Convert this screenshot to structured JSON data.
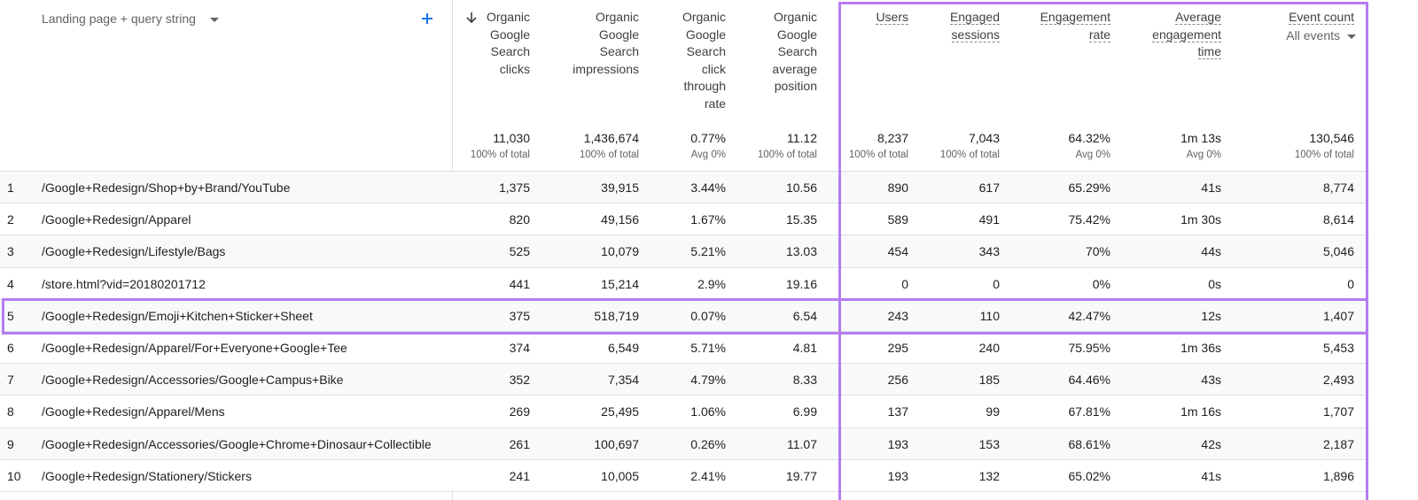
{
  "header": {
    "dimension": "Landing page + query string",
    "columns": [
      {
        "label": "Organic Google Search clicks",
        "total": "11,030",
        "note": "100% of total"
      },
      {
        "label": "Organic Google Search impressions",
        "total": "1,436,674",
        "note": "100% of total"
      },
      {
        "label": "Organic Google Search click through rate",
        "total": "0.77%",
        "note": "Avg 0%"
      },
      {
        "label": "Organic Google Search average position",
        "total": "11.12",
        "note": "100% of total"
      },
      {
        "label": "Users",
        "total": "8,237",
        "note": "100% of total"
      },
      {
        "label": "Engaged sessions",
        "total": "7,043",
        "note": "100% of total"
      },
      {
        "label": "Engagement rate",
        "total": "64.32%",
        "note": "Avg 0%"
      },
      {
        "label": "Average engagement time",
        "total": "1m 13s",
        "note": "Avg 0%"
      },
      {
        "label": "Event count",
        "sub_label": "All events",
        "total": "130,546",
        "note": "100% of total"
      }
    ]
  },
  "rows": [
    {
      "rank": "1",
      "page": "/Google+Redesign/Shop+by+Brand/YouTube",
      "cells": [
        "1,375",
        "39,915",
        "3.44%",
        "10.56",
        "890",
        "617",
        "65.29%",
        "41s",
        "8,774"
      ]
    },
    {
      "rank": "2",
      "page": "/Google+Redesign/Apparel",
      "cells": [
        "820",
        "49,156",
        "1.67%",
        "15.35",
        "589",
        "491",
        "75.42%",
        "1m 30s",
        "8,614"
      ]
    },
    {
      "rank": "3",
      "page": "/Google+Redesign/Lifestyle/Bags",
      "cells": [
        "525",
        "10,079",
        "5.21%",
        "13.03",
        "454",
        "343",
        "70%",
        "44s",
        "5,046"
      ]
    },
    {
      "rank": "4",
      "page": "/store.html?vid=20180201712",
      "cells": [
        "441",
        "15,214",
        "2.9%",
        "19.16",
        "0",
        "0",
        "0%",
        "0s",
        "0"
      ]
    },
    {
      "rank": "5",
      "page": "/Google+Redesign/Emoji+Kitchen+Sticker+Sheet",
      "cells": [
        "375",
        "518,719",
        "0.07%",
        "6.54",
        "243",
        "110",
        "42.47%",
        "12s",
        "1,407"
      ]
    },
    {
      "rank": "6",
      "page": "/Google+Redesign/Apparel/For+Everyone+Google+Tee",
      "cells": [
        "374",
        "6,549",
        "5.71%",
        "4.81",
        "295",
        "240",
        "75.95%",
        "1m 36s",
        "5,453"
      ]
    },
    {
      "rank": "7",
      "page": "/Google+Redesign/Accessories/Google+Campus+Bike",
      "cells": [
        "352",
        "7,354",
        "4.79%",
        "8.33",
        "256",
        "185",
        "64.46%",
        "43s",
        "2,493"
      ]
    },
    {
      "rank": "8",
      "page": "/Google+Redesign/Apparel/Mens",
      "cells": [
        "269",
        "25,495",
        "1.06%",
        "6.99",
        "137",
        "99",
        "67.81%",
        "1m 16s",
        "1,707"
      ]
    },
    {
      "rank": "9",
      "page": "/Google+Redesign/Accessories/Google+Chrome+Dinosaur+Collectible",
      "cells": [
        "261",
        "100,697",
        "0.26%",
        "11.07",
        "193",
        "153",
        "68.61%",
        "42s",
        "2,187"
      ]
    },
    {
      "rank": "10",
      "page": "/Google+Redesign/Stationery/Stickers",
      "cells": [
        "241",
        "10,005",
        "2.41%",
        "19.77",
        "193",
        "132",
        "65.02%",
        "41s",
        "1,896"
      ]
    }
  ]
}
